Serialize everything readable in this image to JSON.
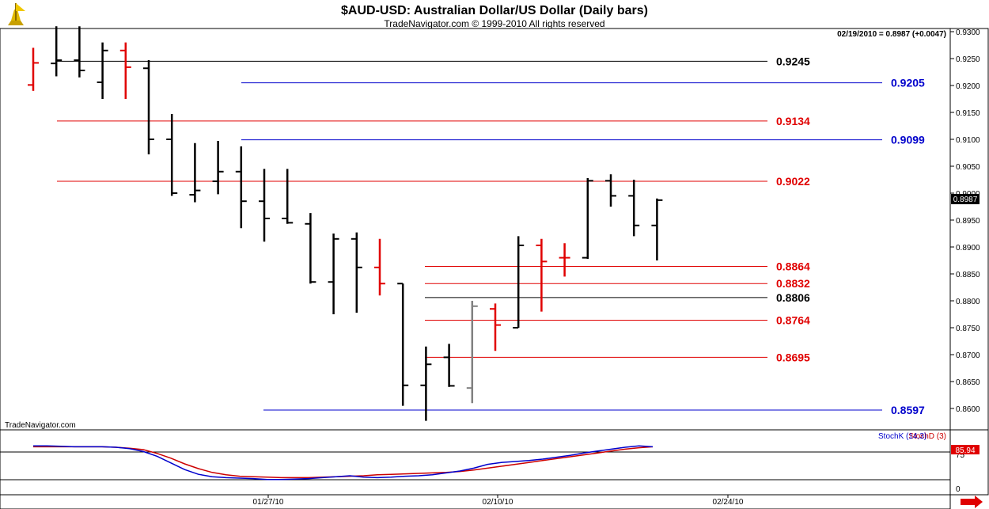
{
  "header": {
    "title": "$AUD-USD:  Australian Dollar/US Dollar  (Daily bars)",
    "subtitle": "TradeNavigator.com © 1999-2010 All rights reserved",
    "last_price_label": "02/19/2010 = 0.8987 (+0.0047)",
    "brand_label": "TradeNavigator.com"
  },
  "colors": {
    "up_bar": "#000000",
    "down_bar": "#e00000",
    "neutral_bar": "#808080",
    "blue_level": "#0000cc",
    "red_level": "#e00000",
    "black_level": "#000000",
    "stochD": "#cc0000",
    "stochK": "#0000cc",
    "panel_bg": "#ffffff",
    "price_flag_bg": "#000000",
    "indicator_flag_bg": "#e00000"
  },
  "chart_data": [
    {
      "type": "ohlc",
      "x_labels": [
        "01/27/10",
        "02/10/10",
        "02/24/10"
      ],
      "y_ticks": [
        "0.9300",
        "0.9250",
        "0.9200",
        "0.9150",
        "0.9100",
        "0.9050",
        "0.9000",
        "0.8950",
        "0.8900",
        "0.8850",
        "0.8800",
        "0.8750",
        "0.8700",
        "0.8650",
        "0.8600"
      ],
      "ylim": [
        0.8575,
        0.931
      ],
      "last_price": "0.8987",
      "bars": [
        {
          "o": 0.9201,
          "h": 0.927,
          "l": 0.919,
          "c": 0.9242,
          "color": "down"
        },
        {
          "o": 0.9241,
          "h": 0.931,
          "l": 0.9217,
          "c": 0.9247,
          "color": "up"
        },
        {
          "o": 0.9247,
          "h": 0.931,
          "l": 0.9215,
          "c": 0.9228,
          "color": "up"
        },
        {
          "o": 0.9206,
          "h": 0.928,
          "l": 0.9175,
          "c": 0.9265,
          "color": "up"
        },
        {
          "o": 0.9265,
          "h": 0.928,
          "l": 0.9175,
          "c": 0.9234,
          "color": "down"
        },
        {
          "o": 0.9232,
          "h": 0.9247,
          "l": 0.9072,
          "c": 0.91,
          "color": "up"
        },
        {
          "o": 0.91,
          "h": 0.9147,
          "l": 0.8995,
          "c": 0.9,
          "color": "up"
        },
        {
          "o": 0.8997,
          "h": 0.9093,
          "l": 0.8983,
          "c": 0.9005,
          "color": "up"
        },
        {
          "o": 0.9022,
          "h": 0.9097,
          "l": 0.8998,
          "c": 0.904,
          "color": "up"
        },
        {
          "o": 0.904,
          "h": 0.9087,
          "l": 0.8935,
          "c": 0.8985,
          "color": "up"
        },
        {
          "o": 0.8985,
          "h": 0.9045,
          "l": 0.891,
          "c": 0.8953,
          "color": "up"
        },
        {
          "o": 0.8953,
          "h": 0.9045,
          "l": 0.8943,
          "c": 0.8945,
          "color": "up"
        },
        {
          "o": 0.8943,
          "h": 0.8963,
          "l": 0.8832,
          "c": 0.8835,
          "color": "up"
        },
        {
          "o": 0.8835,
          "h": 0.8925,
          "l": 0.8775,
          "c": 0.8915,
          "color": "up"
        },
        {
          "o": 0.8915,
          "h": 0.8927,
          "l": 0.8778,
          "c": 0.8862,
          "color": "up"
        },
        {
          "o": 0.8862,
          "h": 0.8915,
          "l": 0.881,
          "c": 0.8832,
          "color": "down"
        },
        {
          "o": 0.8832,
          "h": 0.8832,
          "l": 0.8605,
          "c": 0.8643,
          "color": "up"
        },
        {
          "o": 0.8643,
          "h": 0.8715,
          "l": 0.8577,
          "c": 0.8682,
          "color": "up"
        },
        {
          "o": 0.8695,
          "h": 0.872,
          "l": 0.864,
          "c": 0.8642,
          "color": "up"
        },
        {
          "o": 0.8638,
          "h": 0.88,
          "l": 0.861,
          "c": 0.879,
          "color": "neutral"
        },
        {
          "o": 0.8785,
          "h": 0.8795,
          "l": 0.8707,
          "c": 0.8755,
          "color": "down"
        },
        {
          "o": 0.875,
          "h": 0.892,
          "l": 0.875,
          "c": 0.8903,
          "color": "up"
        },
        {
          "o": 0.8903,
          "h": 0.8915,
          "l": 0.878,
          "c": 0.8873,
          "color": "down"
        },
        {
          "o": 0.888,
          "h": 0.8907,
          "l": 0.8845,
          "c": 0.888,
          "color": "down"
        },
        {
          "o": 0.888,
          "h": 0.9028,
          "l": 0.8878,
          "c": 0.9023,
          "color": "up"
        },
        {
          "o": 0.9023,
          "h": 0.9035,
          "l": 0.8975,
          "c": 0.8995,
          "color": "up"
        },
        {
          "o": 0.8995,
          "h": 0.9025,
          "l": 0.892,
          "c": 0.894,
          "color": "up"
        },
        {
          "o": 0.894,
          "h": 0.899,
          "l": 0.8875,
          "c": 0.8987,
          "color": "up"
        }
      ],
      "levels": [
        {
          "value": 0.9245,
          "label": "0.9245",
          "color": "black",
          "from_bar": 1
        },
        {
          "value": 0.9205,
          "label": "0.9205",
          "color": "blue",
          "from_bar": 10
        },
        {
          "value": 0.9134,
          "label": "0.9134",
          "color": "red",
          "from_bar": 1
        },
        {
          "value": 0.9099,
          "label": "0.9099",
          "color": "blue",
          "from_bar": 10
        },
        {
          "value": 0.9022,
          "label": "0.9022",
          "color": "red",
          "from_bar": 1
        },
        {
          "value": 0.8864,
          "label": "0.8864",
          "color": "red",
          "from_bar": 17
        },
        {
          "value": 0.8832,
          "label": "0.8832",
          "color": "red",
          "from_bar": 17
        },
        {
          "value": 0.8806,
          "label": "0.8806",
          "color": "black",
          "from_bar": 17
        },
        {
          "value": 0.8764,
          "label": "0.8764",
          "color": "red",
          "from_bar": 17
        },
        {
          "value": 0.8695,
          "label": "0.8695",
          "color": "red",
          "from_bar": 17
        },
        {
          "value": 0.8597,
          "label": "0.8597",
          "color": "blue",
          "from_bar": 11
        }
      ]
    },
    {
      "type": "line",
      "legend": [
        "StochD (3)",
        "StochK (14,3)"
      ],
      "y_ticks": [
        "75",
        "0"
      ],
      "ylim": [
        0,
        100
      ],
      "last_value": "85.94",
      "series": [
        {
          "name": "StochD (3)",
          "color": "red",
          "values": [
            86,
            86,
            86,
            86,
            86,
            86,
            85,
            83,
            80,
            72,
            62,
            50,
            40,
            32,
            27,
            24,
            23,
            22,
            21,
            21,
            21,
            22,
            23,
            24,
            25,
            27,
            28,
            29,
            30,
            31,
            32,
            34,
            37,
            41,
            45,
            49,
            53,
            57,
            61,
            65,
            69,
            73,
            77,
            81,
            84,
            86
          ]
        },
        {
          "name": "StochK (14,3)",
          "color": "blue",
          "values": [
            88,
            88,
            87,
            86,
            86,
            86,
            85,
            82,
            76,
            66,
            52,
            38,
            28,
            23,
            21,
            20,
            19,
            17,
            17,
            18,
            19,
            21,
            23,
            25,
            22,
            21,
            22,
            24,
            25,
            27,
            31,
            35,
            41,
            49,
            53,
            55,
            57,
            60,
            64,
            68,
            73,
            77,
            81,
            85,
            88,
            86
          ]
        }
      ]
    }
  ]
}
